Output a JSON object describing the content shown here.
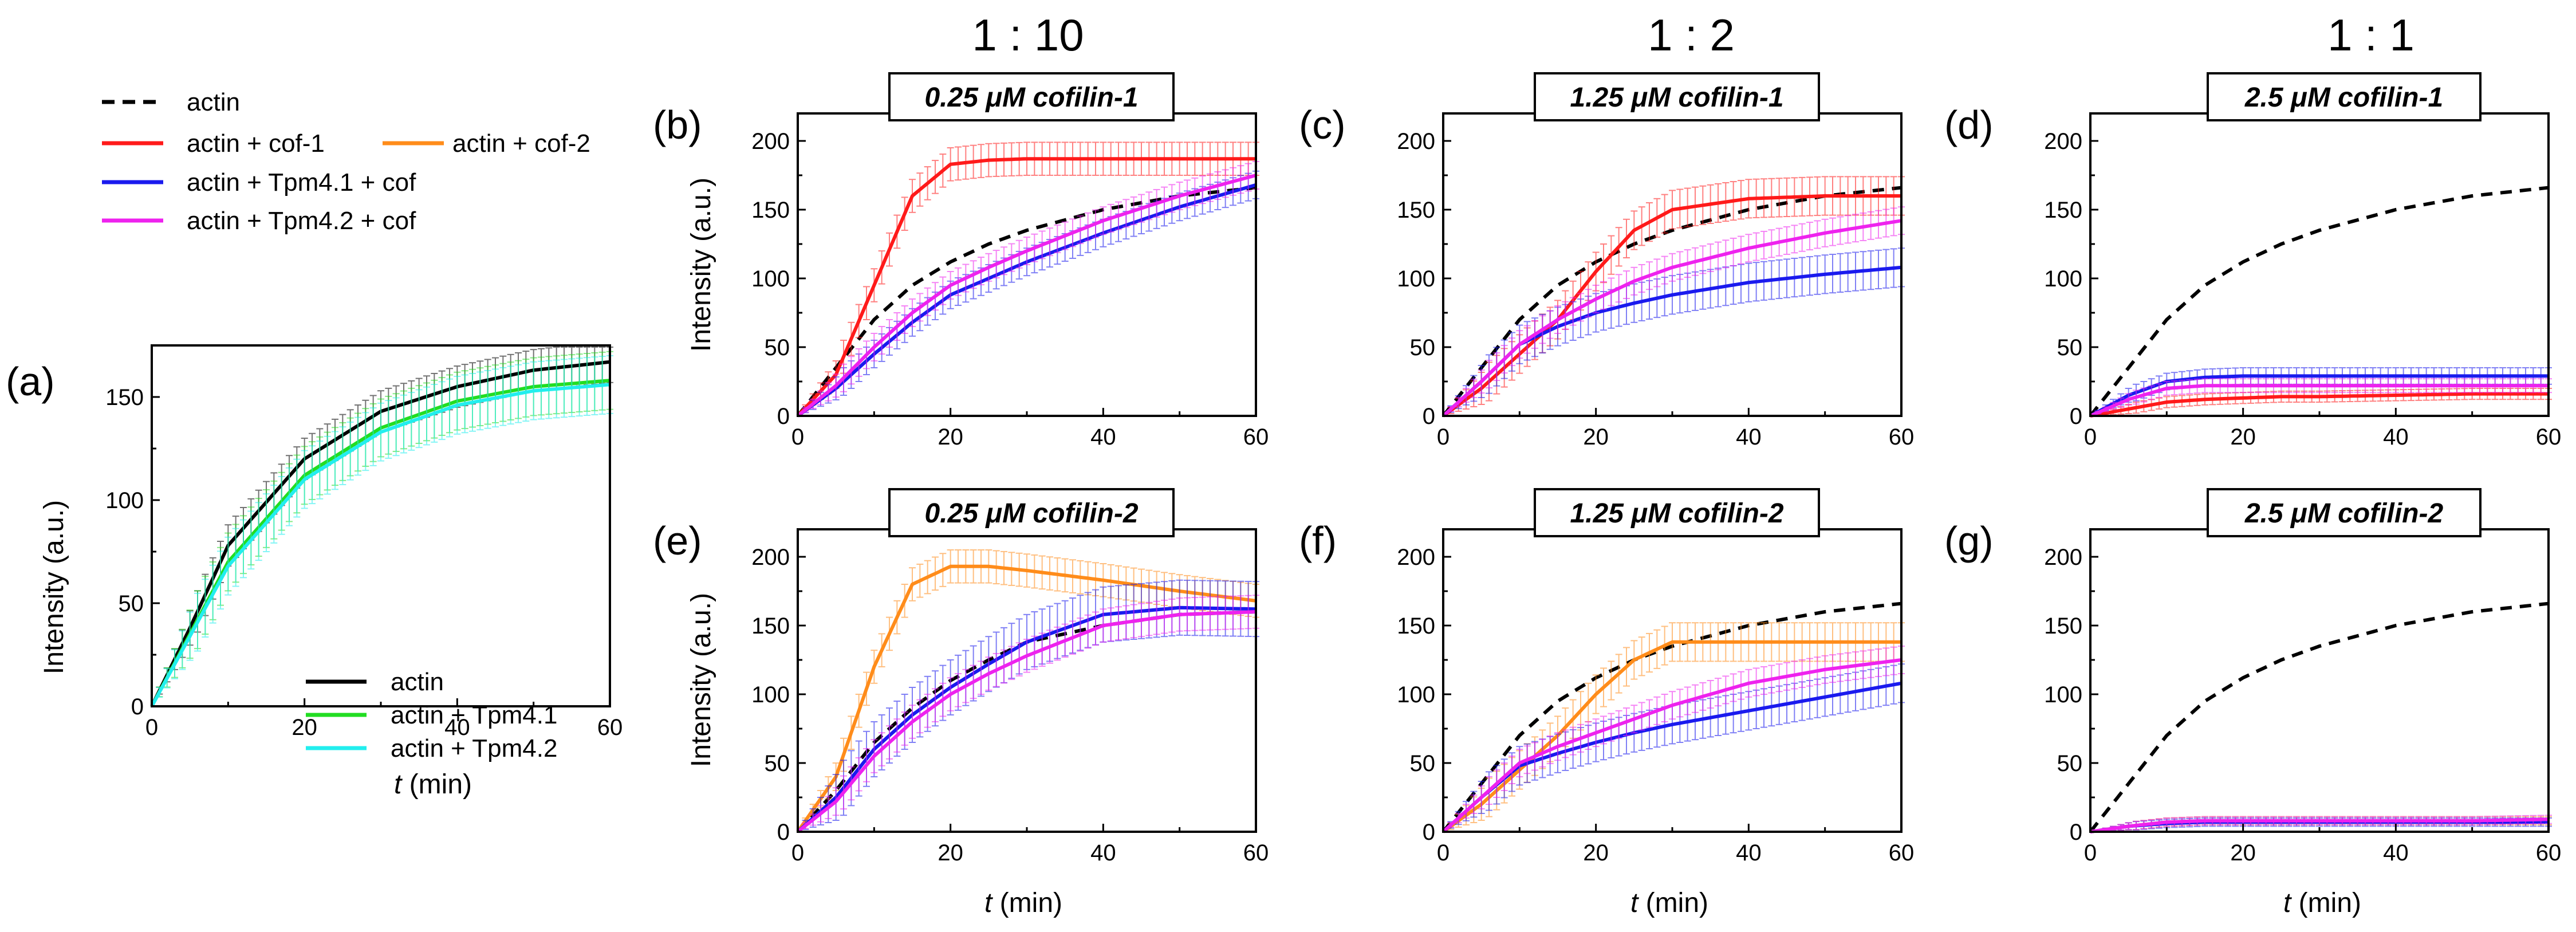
{
  "colors": {
    "actin": "#000000",
    "cof1": "#ff1a1a",
    "cof2": "#ff8c1a",
    "tpm41_cof": "#1a1aee",
    "tpm42_cof": "#ee22ee",
    "tpm41": "#22dd22",
    "tpm42": "#22eeee"
  },
  "column_headers": [
    "1 : 10",
    "1 : 2",
    "1 : 1"
  ],
  "main_legend": {
    "actin": "actin",
    "cof1": "actin + cof-1",
    "cof2": "actin + cof-2",
    "tpm41_cof": "actin + Tpm4.1 + cof",
    "tpm42_cof": "actin + Tpm4.2 + cof"
  },
  "chart_data": [
    {
      "id": "a",
      "panel_label": "(a)",
      "type": "line",
      "title": "",
      "xlabel_italic": "t",
      "xlabel_unit": " (min)",
      "ylabel": "Intensity (a.u.)",
      "xlim": [
        0,
        60
      ],
      "ylim": [
        0,
        175
      ],
      "xticks": [
        0,
        20,
        40,
        60
      ],
      "yticks": [
        0,
        50,
        100,
        150
      ],
      "x": [
        0,
        5,
        10,
        20,
        30,
        40,
        50,
        60
      ],
      "legend": [
        "actin",
        "actin + Tpm4.1",
        "actin + Tpm4.2"
      ],
      "series": [
        {
          "name": "actin",
          "color_key": "actin",
          "dash": false,
          "error": 10,
          "values": [
            0,
            38,
            78,
            120,
            143,
            155,
            163,
            167
          ]
        },
        {
          "name": "actin + Tpm4.1",
          "color_key": "tpm41",
          "dash": false,
          "error": 14,
          "values": [
            0,
            35,
            70,
            112,
            135,
            148,
            155,
            158
          ]
        },
        {
          "name": "actin + Tpm4.2",
          "color_key": "tpm42",
          "dash": false,
          "error": 14,
          "values": [
            0,
            34,
            68,
            110,
            133,
            146,
            153,
            156
          ]
        }
      ]
    },
    {
      "id": "b",
      "panel_label": "(b)",
      "type": "line",
      "title_num": "0.25 ",
      "title_unit": "μM cofilin-1",
      "xlabel_italic": "",
      "xlabel_unit": "",
      "ylabel": "Intensity (a.u.)",
      "xlim": [
        0,
        60
      ],
      "ylim": [
        0,
        220
      ],
      "xticks": [
        0,
        20,
        40,
        60
      ],
      "yticks": [
        0,
        50,
        100,
        150,
        200
      ],
      "x": [
        0,
        5,
        10,
        15,
        20,
        25,
        30,
        40,
        50,
        60
      ],
      "series": [
        {
          "name": "actin",
          "color_key": "actin",
          "dash": true,
          "error": 0,
          "values": [
            0,
            35,
            70,
            95,
            112,
            125,
            135,
            150,
            160,
            166
          ]
        },
        {
          "name": "actin + cof-1",
          "color_key": "cof1",
          "dash": false,
          "error": 12,
          "values": [
            0,
            30,
            95,
            160,
            183,
            186,
            187,
            187,
            187,
            187
          ]
        },
        {
          "name": "actin + Tpm4.1 + cof",
          "color_key": "tpm41_cof",
          "dash": false,
          "error": 10,
          "values": [
            0,
            20,
            45,
            68,
            88,
            100,
            112,
            133,
            152,
            168
          ]
        },
        {
          "name": "actin + Tpm4.2 + cof",
          "color_key": "tpm42_cof",
          "dash": false,
          "error": 10,
          "values": [
            0,
            22,
            50,
            75,
            95,
            108,
            120,
            142,
            160,
            175
          ]
        }
      ]
    },
    {
      "id": "c",
      "panel_label": "(c)",
      "type": "line",
      "title_num": "1.25 ",
      "title_unit": "μM cofilin-1",
      "xlabel_italic": "",
      "xlabel_unit": "",
      "ylabel": "",
      "xlim": [
        0,
        60
      ],
      "ylim": [
        0,
        220
      ],
      "xticks": [
        0,
        20,
        40,
        60
      ],
      "yticks": [
        0,
        50,
        100,
        150,
        200
      ],
      "x": [
        0,
        5,
        10,
        15,
        20,
        25,
        30,
        40,
        50,
        60
      ],
      "series": [
        {
          "name": "actin",
          "color_key": "actin",
          "dash": true,
          "error": 0,
          "values": [
            0,
            35,
            70,
            95,
            112,
            125,
            135,
            150,
            160,
            166
          ]
        },
        {
          "name": "actin + cof-1",
          "color_key": "cof1",
          "dash": false,
          "error": 14,
          "values": [
            0,
            20,
            45,
            70,
            105,
            135,
            150,
            158,
            160,
            160
          ]
        },
        {
          "name": "actin + Tpm4.1 + cof",
          "color_key": "tpm41_cof",
          "dash": false,
          "error": 14,
          "values": [
            0,
            25,
            52,
            65,
            75,
            82,
            88,
            97,
            103,
            108
          ]
        },
        {
          "name": "actin + Tpm4.2 + cof",
          "color_key": "tpm42_cof",
          "dash": false,
          "error": 10,
          "values": [
            0,
            25,
            52,
            70,
            85,
            98,
            108,
            122,
            133,
            142
          ]
        }
      ]
    },
    {
      "id": "d",
      "panel_label": "(d)",
      "type": "line",
      "title_num": "2.5 ",
      "title_unit": "μM cofilin-1",
      "xlabel_italic": "",
      "xlabel_unit": "",
      "ylabel": "",
      "xlim": [
        0,
        60
      ],
      "ylim": [
        0,
        220
      ],
      "xticks": [
        0,
        20,
        40,
        60
      ],
      "yticks": [
        0,
        50,
        100,
        150,
        200
      ],
      "x": [
        0,
        5,
        10,
        15,
        20,
        25,
        30,
        40,
        50,
        60
      ],
      "series": [
        {
          "name": "actin",
          "color_key": "actin",
          "dash": true,
          "error": 0,
          "values": [
            0,
            35,
            70,
            95,
            112,
            125,
            135,
            150,
            160,
            166
          ]
        },
        {
          "name": "actin + cof-1",
          "color_key": "cof1",
          "dash": false,
          "error": 4,
          "values": [
            0,
            5,
            10,
            12,
            13,
            14,
            14,
            15,
            16,
            16
          ]
        },
        {
          "name": "actin + Tpm4.1 + cof",
          "color_key": "tpm41_cof",
          "dash": false,
          "error": 6,
          "values": [
            0,
            15,
            25,
            28,
            29,
            29,
            29,
            29,
            29,
            29
          ]
        },
        {
          "name": "actin + Tpm4.2 + cof",
          "color_key": "tpm42_cof",
          "dash": false,
          "error": 5,
          "values": [
            0,
            12,
            20,
            22,
            22,
            22,
            22,
            22,
            22,
            22
          ]
        }
      ]
    },
    {
      "id": "e",
      "panel_label": "(e)",
      "type": "line",
      "title_num": "0.25 ",
      "title_unit": "μM cofilin-2",
      "xlabel_italic": "t",
      "xlabel_unit": " (min)",
      "ylabel": "Intensity (a.u.)",
      "xlim": [
        0,
        60
      ],
      "ylim": [
        0,
        220
      ],
      "xticks": [
        0,
        20,
        40,
        60
      ],
      "yticks": [
        0,
        50,
        100,
        150,
        200
      ],
      "x": [
        0,
        5,
        10,
        15,
        20,
        25,
        30,
        40,
        50,
        60
      ],
      "series": [
        {
          "name": "actin",
          "color_key": "actin",
          "dash": true,
          "error": 0,
          "values": [
            0,
            30,
            65,
            90,
            110,
            125,
            138,
            150,
            158,
            160
          ]
        },
        {
          "name": "actin + cof-2",
          "color_key": "cof2",
          "dash": false,
          "error": 12,
          "values": [
            0,
            40,
            120,
            180,
            193,
            193,
            190,
            183,
            175,
            168
          ]
        },
        {
          "name": "actin + Tpm4.1 + cof",
          "color_key": "tpm41_cof",
          "dash": false,
          "error": 20,
          "values": [
            0,
            25,
            60,
            85,
            105,
            122,
            138,
            158,
            163,
            162
          ]
        },
        {
          "name": "actin + Tpm4.2 + cof",
          "color_key": "tpm42_cof",
          "dash": false,
          "error": 12,
          "values": [
            0,
            22,
            55,
            80,
            100,
            115,
            128,
            150,
            158,
            160
          ]
        }
      ]
    },
    {
      "id": "f",
      "panel_label": "(f)",
      "type": "line",
      "title_num": "1.25 ",
      "title_unit": "μM cofilin-2",
      "xlabel_italic": "t",
      "xlabel_unit": " (min)",
      "ylabel": "",
      "xlim": [
        0,
        60
      ],
      "ylim": [
        0,
        220
      ],
      "xticks": [
        0,
        20,
        40,
        60
      ],
      "yticks": [
        0,
        50,
        100,
        150,
        200
      ],
      "x": [
        0,
        5,
        10,
        15,
        20,
        25,
        30,
        40,
        50,
        60
      ],
      "series": [
        {
          "name": "actin",
          "color_key": "actin",
          "dash": true,
          "error": 0,
          "values": [
            0,
            35,
            70,
            95,
            112,
            125,
            135,
            150,
            160,
            166
          ]
        },
        {
          "name": "actin + cof-2",
          "color_key": "cof2",
          "dash": false,
          "error": 14,
          "values": [
            0,
            20,
            45,
            70,
            100,
            125,
            138,
            138,
            138,
            138
          ]
        },
        {
          "name": "actin + Tpm4.1 + cof",
          "color_key": "tpm41_cof",
          "dash": false,
          "error": 14,
          "values": [
            0,
            25,
            48,
            57,
            65,
            72,
            78,
            88,
            98,
            108
          ]
        },
        {
          "name": "actin + Tpm4.2 + cof",
          "color_key": "tpm42_cof",
          "dash": false,
          "error": 10,
          "values": [
            0,
            25,
            50,
            62,
            72,
            82,
            92,
            108,
            118,
            125
          ]
        }
      ]
    },
    {
      "id": "g",
      "panel_label": "(g)",
      "type": "line",
      "title_num": "2.5 ",
      "title_unit": "μM cofilin-2",
      "xlabel_italic": "t",
      "xlabel_unit": " (min)",
      "ylabel": "",
      "xlim": [
        0,
        60
      ],
      "ylim": [
        0,
        220
      ],
      "xticks": [
        0,
        20,
        40,
        60
      ],
      "yticks": [
        0,
        50,
        100,
        150,
        200
      ],
      "x": [
        0,
        5,
        10,
        15,
        20,
        25,
        30,
        40,
        50,
        60
      ],
      "series": [
        {
          "name": "actin",
          "color_key": "actin",
          "dash": true,
          "error": 0,
          "values": [
            0,
            35,
            70,
            95,
            112,
            125,
            135,
            150,
            160,
            166
          ]
        },
        {
          "name": "actin + cof-2",
          "color_key": "cof2",
          "dash": false,
          "error": 3,
          "values": [
            0,
            4,
            7,
            8,
            8,
            8,
            8,
            8,
            8,
            8
          ]
        },
        {
          "name": "actin + Tpm4.1 + cof",
          "color_key": "tpm41_cof",
          "dash": false,
          "error": 3,
          "values": [
            0,
            4,
            6,
            7,
            7,
            7,
            7,
            7,
            7,
            7
          ]
        },
        {
          "name": "actin + Tpm4.2 + cof",
          "color_key": "tpm42_cof",
          "dash": false,
          "error": 3,
          "values": [
            0,
            4,
            7,
            8,
            8,
            8,
            8,
            8,
            8,
            9
          ]
        }
      ]
    }
  ]
}
